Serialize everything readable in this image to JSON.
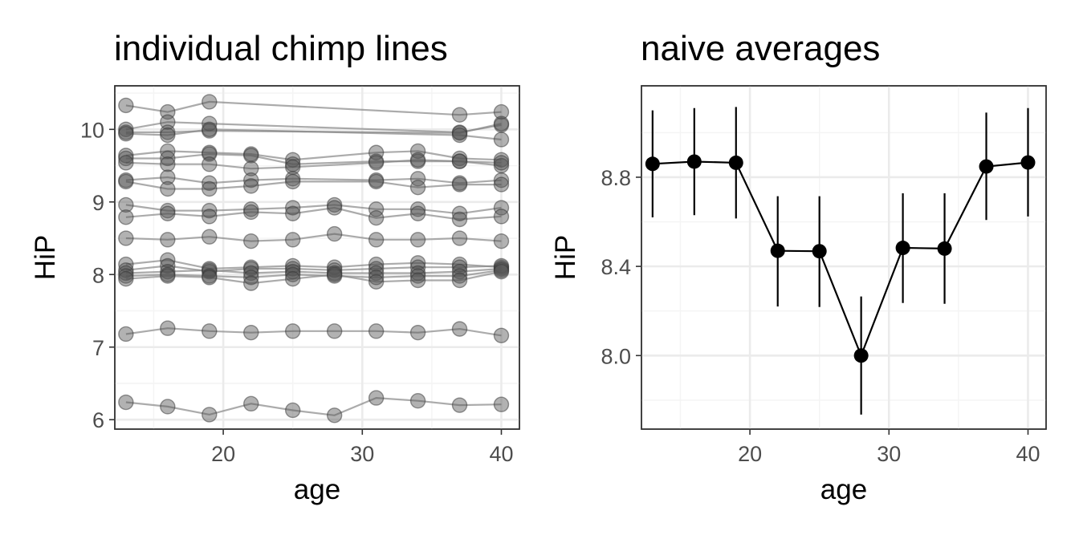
{
  "chart_data": [
    {
      "type": "line",
      "title": "individual chimp lines",
      "xlabel": "age",
      "ylabel": "HiP",
      "xlim": [
        12.2,
        41.3
      ],
      "ylim": [
        5.87,
        10.6
      ],
      "xticks": [
        20,
        30,
        40
      ],
      "yticks": [
        6,
        7,
        8,
        9,
        10
      ],
      "x": [
        13,
        16,
        19,
        22,
        25,
        28,
        31,
        34,
        37,
        40
      ],
      "style": {
        "point_color": "#555555",
        "point_opacity": 0.45,
        "line_color": "#888888",
        "line_opacity": 0.7
      },
      "series": [
        {
          "values": [
            10.33,
            10.24,
            10.38,
            null,
            null,
            null,
            null,
            null,
            10.2,
            10.24
          ]
        },
        {
          "values": [
            10.0,
            10.1,
            10.08,
            null,
            null,
            null,
            null,
            null,
            9.96,
            10.06
          ]
        },
        {
          "values": [
            9.96,
            9.96,
            9.98,
            null,
            null,
            null,
            null,
            null,
            9.95,
            10.08
          ]
        },
        {
          "values": [
            9.94,
            9.92,
            10.0,
            null,
            null,
            null,
            null,
            null,
            9.92,
            9.86
          ]
        },
        {
          "values": [
            9.64,
            9.7,
            9.68,
            9.66,
            9.58,
            null,
            9.68,
            9.7,
            9.6,
            9.58
          ]
        },
        {
          "values": [
            9.6,
            9.6,
            9.66,
            9.64,
            9.52,
            null,
            9.56,
            9.56,
            9.56,
            9.5
          ]
        },
        {
          "values": [
            9.54,
            9.52,
            9.52,
            9.46,
            9.48,
            null,
            9.54,
            9.58,
            9.56,
            9.54
          ]
        },
        {
          "values": [
            9.3,
            9.34,
            9.26,
            9.3,
            9.32,
            null,
            9.3,
            9.32,
            9.26,
            9.3
          ]
        },
        {
          "values": [
            9.28,
            9.18,
            9.18,
            9.22,
            9.28,
            null,
            9.28,
            9.2,
            9.24,
            9.24
          ]
        },
        {
          "values": [
            8.96,
            8.88,
            8.88,
            8.9,
            8.92,
            8.96,
            8.9,
            8.9,
            8.84,
            8.92
          ]
        },
        {
          "values": [
            8.79,
            8.84,
            8.8,
            8.86,
            8.84,
            8.92,
            8.78,
            8.84,
            8.76,
            8.8
          ]
        },
        {
          "values": [
            8.5,
            8.48,
            8.52,
            8.46,
            8.48,
            8.56,
            8.48,
            8.48,
            8.5,
            8.46
          ]
        },
        {
          "values": [
            8.14,
            8.2,
            8.08,
            8.1,
            8.12,
            8.1,
            8.14,
            8.16,
            8.14,
            8.1
          ]
        },
        {
          "values": [
            8.06,
            8.12,
            8.04,
            8.08,
            8.08,
            8.06,
            8.08,
            8.1,
            8.1,
            8.12
          ]
        },
        {
          "values": [
            8.02,
            8.04,
            8.06,
            8.02,
            8.04,
            8.02,
            8.02,
            8.02,
            8.04,
            8.08
          ]
        },
        {
          "values": [
            7.98,
            8.0,
            7.98,
            7.96,
            8.0,
            7.98,
            7.96,
            7.98,
            7.98,
            8.06
          ]
        },
        {
          "values": [
            7.94,
            7.98,
            7.96,
            7.88,
            7.94,
            8.0,
            7.9,
            7.92,
            7.92,
            8.04
          ]
        },
        {
          "values": [
            7.18,
            7.26,
            7.22,
            7.2,
            7.22,
            7.22,
            7.22,
            7.2,
            7.25,
            7.16
          ]
        },
        {
          "values": [
            6.24,
            6.18,
            6.07,
            6.22,
            6.13,
            6.06,
            6.3,
            6.26,
            6.2,
            6.21
          ]
        }
      ]
    },
    {
      "type": "line",
      "title": "naive averages",
      "xlabel": "age",
      "ylabel": "HiP",
      "xlim": [
        12.2,
        41.3
      ],
      "ylim": [
        7.67,
        9.21
      ],
      "xticks": [
        20,
        30,
        40
      ],
      "yticks": [
        8.0,
        8.4,
        8.8
      ],
      "ytick_labels": [
        "8.0",
        "8.4",
        "8.8"
      ],
      "x": [
        13,
        16,
        19,
        22,
        25,
        28,
        31,
        34,
        37,
        40
      ],
      "series": [
        {
          "values": [
            8.86,
            8.87,
            8.865,
            8.47,
            8.468,
            8.0,
            8.483,
            8.48,
            8.848,
            8.866
          ],
          "lower": [
            8.62,
            8.63,
            8.615,
            8.22,
            8.218,
            7.735,
            8.236,
            8.232,
            8.608,
            8.624
          ],
          "upper": [
            9.1,
            9.11,
            9.115,
            8.715,
            8.715,
            8.265,
            8.728,
            8.728,
            9.09,
            9.11
          ]
        }
      ]
    }
  ]
}
